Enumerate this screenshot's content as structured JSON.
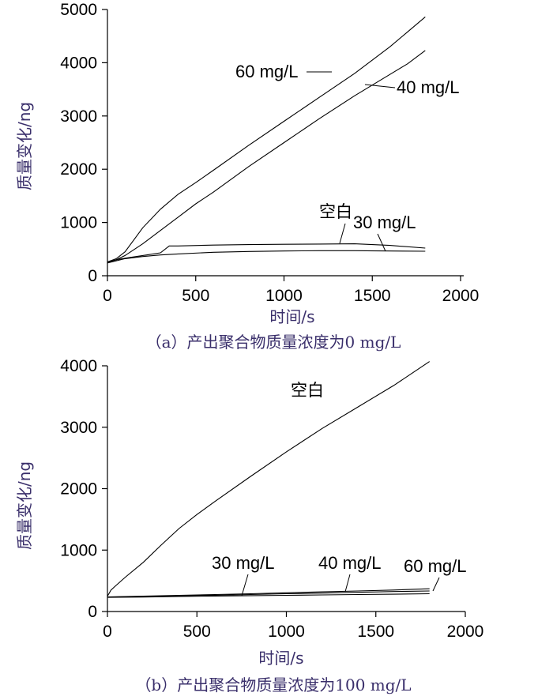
{
  "charts": [
    {
      "id": "a",
      "caption": "（a）产出聚合物质量浓度为0 mg/L",
      "xlabel": "时间/s",
      "ylabel": "质量变化/ng"
    },
    {
      "id": "b",
      "caption": "（b）产出聚合物质量浓度为100 mg/L",
      "xlabel": "时间/s",
      "ylabel": "质量变化/ng"
    }
  ],
  "chart_data": [
    {
      "type": "line",
      "xlim": [
        0,
        2000
      ],
      "ylim": [
        0,
        5000
      ],
      "xticks": [
        0,
        500,
        1000,
        1500,
        2000
      ],
      "yticks": [
        0,
        1000,
        2000,
        3000,
        4000,
        5000
      ],
      "series": [
        {
          "name": "60 mg/L",
          "x": [
            0,
            50,
            100,
            200,
            300,
            400,
            500,
            600,
            800,
            1000,
            1200,
            1400,
            1600,
            1700,
            1800
          ],
          "y": [
            260,
            320,
            450,
            900,
            1250,
            1530,
            1750,
            1980,
            2450,
            2900,
            3350,
            3800,
            4300,
            4580,
            4860
          ]
        },
        {
          "name": "40 mg/L",
          "x": [
            0,
            50,
            100,
            200,
            300,
            400,
            500,
            600,
            800,
            1000,
            1200,
            1400,
            1600,
            1700,
            1800
          ],
          "y": [
            250,
            300,
            380,
            600,
            850,
            1100,
            1350,
            1570,
            2050,
            2500,
            2950,
            3380,
            3780,
            3980,
            4230
          ]
        },
        {
          "name": "空白",
          "x": [
            0,
            50,
            100,
            200,
            300,
            350,
            400,
            600,
            800,
            1000,
            1200,
            1400,
            1600,
            1800
          ],
          "y": [
            250,
            300,
            330,
            380,
            430,
            560,
            560,
            575,
            585,
            590,
            595,
            600,
            570,
            520
          ]
        },
        {
          "name": "30 mg/L",
          "x": [
            0,
            50,
            100,
            200,
            300,
            400,
            600,
            800,
            1000,
            1200,
            1400,
            1600,
            1800
          ],
          "y": [
            240,
            280,
            320,
            360,
            390,
            410,
            440,
            455,
            465,
            470,
            470,
            465,
            460
          ]
        }
      ],
      "annotations": [
        {
          "text": "60 mg/L"
        },
        {
          "text": "40 mg/L"
        },
        {
          "text": "空白"
        },
        {
          "text": "30 mg/L"
        }
      ]
    },
    {
      "type": "line",
      "xlim": [
        0,
        2000
      ],
      "ylim": [
        0,
        4000
      ],
      "xticks": [
        0,
        500,
        1000,
        1500,
        2000
      ],
      "yticks": [
        0,
        1000,
        2000,
        3000,
        4000
      ],
      "series": [
        {
          "name": "空白",
          "x": [
            0,
            20,
            50,
            100,
            200,
            300,
            400,
            500,
            600,
            800,
            1000,
            1200,
            1400,
            1600,
            1800
          ],
          "y": [
            250,
            350,
            430,
            560,
            800,
            1080,
            1350,
            1580,
            1790,
            2200,
            2600,
            2980,
            3330,
            3680,
            4070
          ]
        },
        {
          "name": "30 mg/L",
          "x": [
            0,
            200,
            400,
            600,
            800,
            1000,
            1200,
            1400,
            1600,
            1800
          ],
          "y": [
            230,
            236,
            244,
            252,
            258,
            264,
            270,
            276,
            282,
            290
          ]
        },
        {
          "name": "40 mg/L",
          "x": [
            0,
            200,
            400,
            600,
            800,
            1000,
            1200,
            1400,
            1600,
            1800
          ],
          "y": [
            235,
            243,
            255,
            265,
            277,
            290,
            300,
            312,
            325,
            335
          ]
        },
        {
          "name": "60 mg/L",
          "x": [
            0,
            200,
            400,
            600,
            800,
            1000,
            1200,
            1400,
            1600,
            1800
          ],
          "y": [
            238,
            250,
            262,
            276,
            290,
            305,
            320,
            335,
            350,
            370
          ]
        }
      ],
      "annotations": [
        {
          "text": "空白"
        },
        {
          "text": "30 mg/L"
        },
        {
          "text": "40 mg/L"
        },
        {
          "text": "60 mg/L"
        }
      ]
    }
  ]
}
